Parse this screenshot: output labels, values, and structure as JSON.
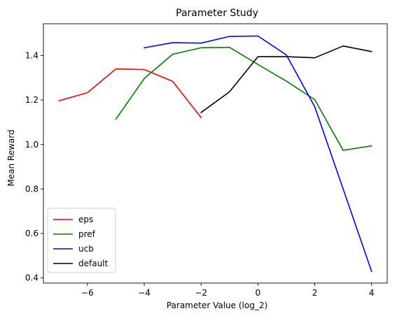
{
  "chart_data": {
    "type": "line",
    "title": "Parameter Study",
    "xlabel": "Parameter Value (log_2)",
    "ylabel": "Mean Reward",
    "xlim": [
      -7.55,
      4.55
    ],
    "ylim": [
      0.377,
      1.543
    ],
    "xticks": [
      -6,
      -4,
      -2,
      0,
      2,
      4
    ],
    "xtick_labels": [
      "−6",
      "−4",
      "−2",
      "0",
      "2",
      "4"
    ],
    "yticks": [
      0.4,
      0.6,
      0.8,
      1.0,
      1.2,
      1.4
    ],
    "ytick_labels": [
      "0.4",
      "0.6",
      "0.8",
      "1.0",
      "1.2",
      "1.4"
    ],
    "grid": false,
    "legend_position": "lower-left",
    "series": [
      {
        "name": "eps",
        "color": "#ff0000",
        "x": [
          -7,
          -6,
          -5,
          -4,
          -3,
          -2
        ],
        "y": [
          1.197,
          1.233,
          1.34,
          1.337,
          1.284,
          1.121
        ]
      },
      {
        "name": "pref",
        "color": "#008000",
        "x": [
          -5,
          -4,
          -3,
          -2,
          -1,
          0,
          1,
          2,
          3,
          4
        ],
        "y": [
          1.114,
          1.297,
          1.406,
          1.435,
          1.437,
          1.36,
          1.285,
          1.202,
          0.974,
          0.994
        ]
      },
      {
        "name": "ucb",
        "color": "#0000ff",
        "x": [
          -4,
          -3,
          -2,
          -1,
          0,
          1,
          2,
          3,
          4
        ],
        "y": [
          1.435,
          1.458,
          1.456,
          1.486,
          1.488,
          1.403,
          1.17,
          0.8,
          0.43
        ]
      },
      {
        "name": "default",
        "color": "#000000",
        "x": [
          -2,
          -1,
          0,
          1,
          2,
          3,
          4
        ],
        "y": [
          1.144,
          1.237,
          1.395,
          1.395,
          1.39,
          1.443,
          1.418
        ]
      }
    ]
  }
}
